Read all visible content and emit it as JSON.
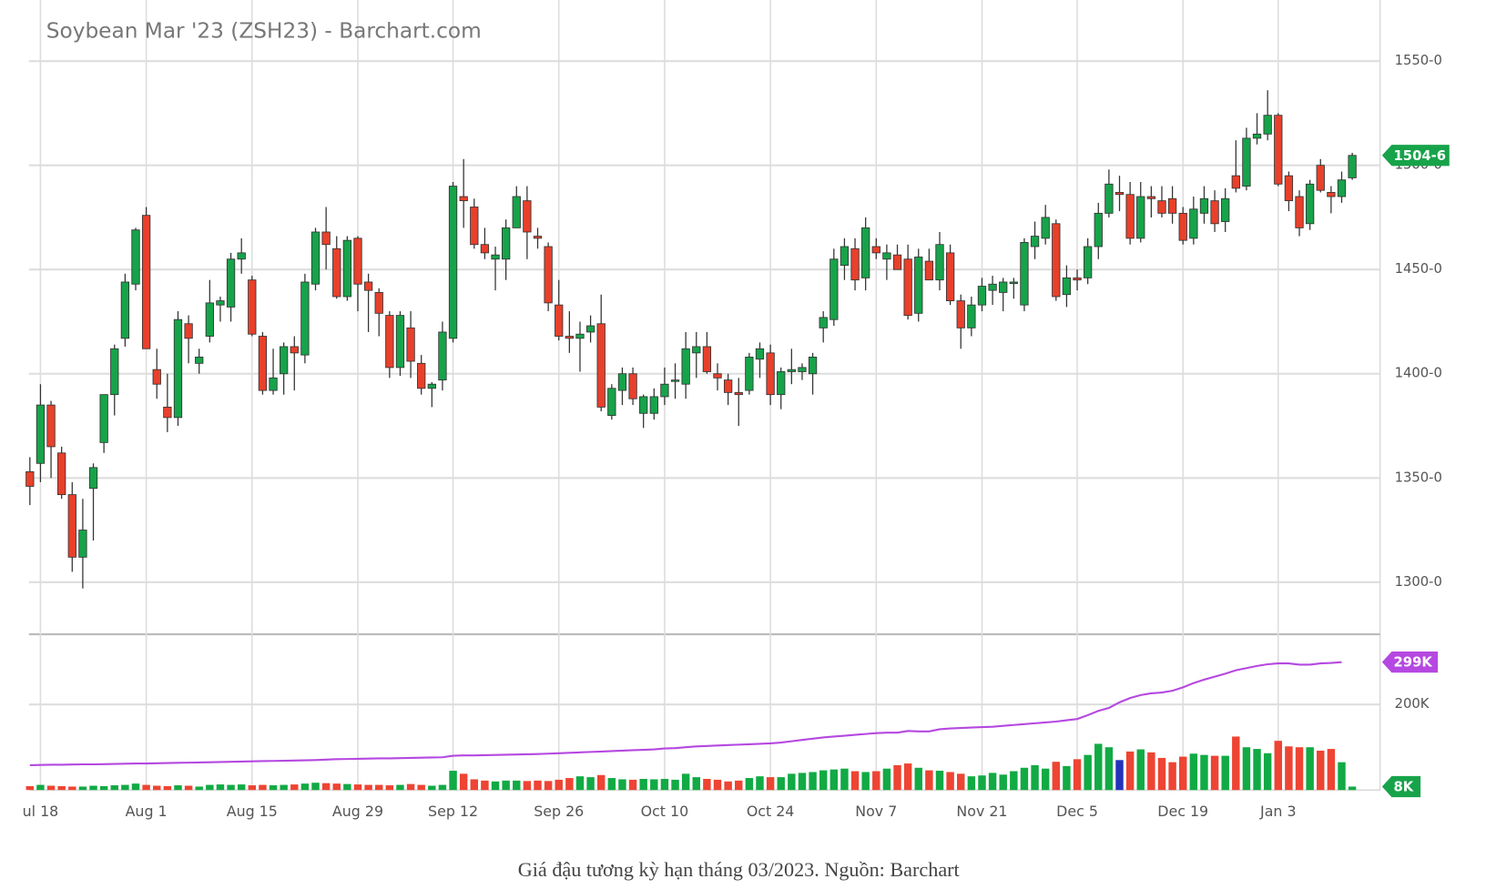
{
  "chart_data": {
    "type": "candlestick",
    "title": "Soybean Mar '23 (ZSH23) - Barchart.com",
    "categories": [
      null,
      "ul 18",
      null,
      null,
      null,
      null,
      null,
      null,
      null,
      null,
      null,
      "Aug 1",
      null,
      null,
      null,
      null,
      null,
      null,
      null,
      null,
      null,
      "Aug 15",
      null,
      null,
      null,
      null,
      null,
      null,
      null,
      null,
      null,
      "Aug 29",
      null,
      null,
      null,
      null,
      null,
      null,
      null,
      null,
      "Sep 12",
      null,
      null,
      null,
      null,
      null,
      null,
      null,
      null,
      null,
      "Sep 26",
      null,
      null,
      null,
      null,
      null,
      null,
      null,
      null,
      null,
      "Oct 10",
      null,
      null,
      null,
      null,
      null,
      null,
      null,
      null,
      null,
      "Oct 24",
      null,
      null,
      null,
      null,
      null,
      null,
      null,
      null,
      null,
      "Nov 7",
      null,
      null,
      null,
      null,
      null,
      null,
      null,
      null,
      null,
      "Nov 21",
      null,
      null,
      null,
      null,
      null,
      null,
      null,
      null,
      "Dec 5",
      null,
      null,
      null,
      null,
      null,
      null,
      null,
      null,
      null,
      "Dec 19",
      null,
      null,
      null,
      null,
      null,
      null,
      null,
      null,
      "Jan 3",
      null,
      null,
      null,
      null,
      null,
      null,
      null
    ],
    "open": [
      1353,
      1357,
      1385,
      1362,
      1342,
      1312,
      1345,
      1367,
      1390,
      1417,
      1443,
      1476,
      1402,
      1384,
      1379,
      1424,
      1405,
      1418,
      1433,
      1432,
      1455,
      1445,
      1418,
      1392,
      1400,
      1413,
      1409,
      1443,
      1468,
      1460,
      1437,
      1465,
      1444,
      1439,
      1428,
      1403,
      1422,
      1405,
      1393,
      1397,
      1417,
      1485,
      1480,
      1462,
      1455,
      1455,
      1470,
      1483,
      1466,
      1461,
      1433,
      1418,
      1417,
      1420,
      1424,
      1380,
      1392,
      1400,
      1381,
      1381,
      1389,
      1397,
      1395,
      1410,
      1413,
      1400,
      1397,
      1391,
      1392,
      1407,
      1410,
      1390,
      1401,
      1401,
      1400,
      1422,
      1426,
      1452,
      1460,
      1446,
      1461,
      1455,
      1457,
      1455,
      1429,
      1454,
      1445,
      1458,
      1435,
      1422,
      1433,
      1440,
      1439,
      1444,
      1433,
      1461,
      1465,
      1472,
      1438,
      1446,
      1446,
      1461,
      1477,
      1487,
      1486,
      1465,
      1485,
      1483,
      1484,
      1477,
      1465,
      1477,
      1483,
      1473,
      1495,
      1490,
      1513,
      1515,
      1524,
      1495,
      1485,
      1472,
      1500,
      1487,
      1485,
      1494
    ],
    "high": [
      1360,
      1395,
      1387,
      1365,
      1348,
      1340,
      1357,
      1390,
      1414,
      1448,
      1470,
      1480,
      1412,
      1400,
      1430,
      1428,
      1412,
      1445,
      1437,
      1458,
      1465,
      1447,
      1420,
      1412,
      1415,
      1418,
      1448,
      1470,
      1480,
      1466,
      1466,
      1466,
      1448,
      1441,
      1430,
      1430,
      1430,
      1409,
      1396,
      1425,
      1492,
      1503,
      1484,
      1470,
      1461,
      1474,
      1490,
      1490,
      1470,
      1463,
      1445,
      1430,
      1425,
      1428,
      1438,
      1395,
      1403,
      1403,
      1390,
      1393,
      1403,
      1405,
      1420,
      1420,
      1420,
      1405,
      1400,
      1398,
      1410,
      1415,
      1414,
      1403,
      1412,
      1405,
      1410,
      1430,
      1460,
      1465,
      1465,
      1475,
      1465,
      1462,
      1462,
      1462,
      1460,
      1460,
      1468,
      1462,
      1438,
      1437,
      1446,
      1447,
      1446,
      1446,
      1465,
      1473,
      1481,
      1474,
      1452,
      1450,
      1465,
      1482,
      1498,
      1495,
      1492,
      1492,
      1490,
      1490,
      1490,
      1480,
      1485,
      1490,
      1488,
      1489,
      1512,
      1518,
      1525,
      1536,
      1525,
      1497,
      1488,
      1493,
      1503,
      1490,
      1497,
      1506
    ],
    "low": [
      1337,
      1348,
      1350,
      1340,
      1305,
      1297,
      1320,
      1362,
      1380,
      1413,
      1440,
      1412,
      1388,
      1372,
      1375,
      1405,
      1400,
      1415,
      1425,
      1425,
      1448,
      1418,
      1390,
      1390,
      1390,
      1392,
      1405,
      1440,
      1450,
      1436,
      1435,
      1430,
      1420,
      1418,
      1398,
      1399,
      1398,
      1390,
      1384,
      1392,
      1415,
      1470,
      1460,
      1455,
      1440,
      1445,
      1470,
      1455,
      1460,
      1430,
      1416,
      1410,
      1401,
      1415,
      1382,
      1378,
      1385,
      1385,
      1374,
      1378,
      1385,
      1388,
      1388,
      1398,
      1400,
      1392,
      1385,
      1375,
      1390,
      1398,
      1385,
      1383,
      1395,
      1397,
      1390,
      1415,
      1423,
      1445,
      1440,
      1440,
      1455,
      1445,
      1450,
      1426,
      1425,
      1445,
      1440,
      1433,
      1412,
      1418,
      1430,
      1433,
      1430,
      1436,
      1430,
      1455,
      1462,
      1435,
      1432,
      1440,
      1443,
      1455,
      1475,
      1478,
      1462,
      1463,
      1475,
      1475,
      1472,
      1462,
      1462,
      1472,
      1468,
      1468,
      1487,
      1488,
      1510,
      1512,
      1490,
      1478,
      1466,
      1469,
      1487,
      1477,
      1482,
      1493
    ],
    "close": [
      1346,
      1385,
      1365,
      1342,
      1312,
      1325,
      1355,
      1390,
      1412,
      1444,
      1469,
      1412,
      1395,
      1379,
      1426,
      1417,
      1408,
      1434,
      1435,
      1455,
      1458,
      1419,
      1392,
      1398,
      1413,
      1410,
      1444,
      1468,
      1462,
      1437,
      1464,
      1443,
      1440,
      1429,
      1403,
      1428,
      1406,
      1393,
      1395,
      1420,
      1490,
      1483,
      1462,
      1458,
      1457,
      1470,
      1485,
      1468,
      1465,
      1434,
      1418,
      1417,
      1419,
      1423,
      1384,
      1393,
      1400,
      1388,
      1389,
      1389,
      1395,
      1397,
      1412,
      1413,
      1401,
      1398,
      1391,
      1390,
      1408,
      1412,
      1390,
      1401,
      1402,
      1403,
      1408,
      1427,
      1455,
      1461,
      1445,
      1470,
      1458,
      1458,
      1450,
      1428,
      1456,
      1445,
      1462,
      1435,
      1422,
      1433,
      1442,
      1443,
      1444,
      1444,
      1463,
      1466,
      1475,
      1437,
      1446,
      1445,
      1461,
      1477,
      1491,
      1486,
      1465,
      1485,
      1484,
      1477,
      1477,
      1464,
      1479,
      1484,
      1472,
      1484,
      1489,
      1513,
      1515,
      1524,
      1491,
      1483,
      1470,
      1491,
      1488,
      1485,
      1493,
      1504.75
    ],
    "up_color": "#17a34a",
    "down_color": "#e8402b",
    "ylim": [
      1275,
      1577
    ],
    "yticks": [
      {
        "value": 1300,
        "label": "1300-0"
      },
      {
        "value": 1350,
        "label": "1350-0"
      },
      {
        "value": 1400,
        "label": "1400-0"
      },
      {
        "value": 1450,
        "label": "1450-0"
      },
      {
        "value": 1500,
        "label": "1500-0"
      },
      {
        "value": 1550,
        "label": "1550-0"
      }
    ],
    "grid": true,
    "volume": {
      "values": [
        9000,
        12000,
        10000,
        9000,
        8000,
        8000,
        10000,
        9000,
        11000,
        12000,
        15000,
        12000,
        10000,
        9000,
        11000,
        10000,
        8000,
        12000,
        13000,
        12000,
        13000,
        11000,
        12000,
        11000,
        12000,
        13000,
        15000,
        17000,
        16000,
        15000,
        14000,
        13000,
        12000,
        12000,
        11000,
        12000,
        14000,
        12000,
        10000,
        12000,
        45000,
        38000,
        25000,
        22000,
        20000,
        22000,
        22000,
        21000,
        22000,
        21000,
        24000,
        28000,
        32000,
        30000,
        35000,
        28000,
        25000,
        24000,
        26000,
        25000,
        26000,
        24000,
        38000,
        30000,
        26000,
        24000,
        20000,
        22000,
        28000,
        32000,
        30000,
        30000,
        38000,
        40000,
        42000,
        46000,
        48000,
        50000,
        44000,
        42000,
        44000,
        50000,
        58000,
        62000,
        52000,
        46000,
        45000,
        42000,
        38000,
        32000,
        34000,
        40000,
        36000,
        44000,
        52000,
        58000,
        50000,
        66000,
        56000,
        72000,
        82000,
        108000,
        100000,
        70000,
        90000,
        95000,
        88000,
        75000,
        65000,
        78000,
        85000,
        82000,
        80000,
        80000,
        125000,
        100000,
        96000,
        86000,
        115000,
        102000,
        100000,
        100000,
        92000,
        96000,
        65000,
        8000
      ],
      "colors": [
        "#e43",
        "#1a4",
        "#e43",
        "#e43",
        "#e43",
        "#1a4",
        "#1a4",
        "#1a4",
        "#1a4",
        "#1a4",
        "#1a4",
        "#e43",
        "#e43",
        "#e43",
        "#1a4",
        "#e43",
        "#1a4",
        "#1a4",
        "#1a4",
        "#1a4",
        "#1a4",
        "#e43",
        "#e43",
        "#1a4",
        "#1a4",
        "#e43",
        "#1a4",
        "#1a4",
        "#e43",
        "#e43",
        "#1a4",
        "#e43",
        "#e43",
        "#e43",
        "#e43",
        "#1a4",
        "#e43",
        "#e43",
        "#1a4",
        "#1a4",
        "#1a4",
        "#e43",
        "#e43",
        "#e43",
        "#1a4",
        "#1a4",
        "#1a4",
        "#e43",
        "#e43",
        "#e43",
        "#e43",
        "#e43",
        "#1a4",
        "#1a4",
        "#e43",
        "#1a4",
        "#1a4",
        "#e43",
        "#1a4",
        "#1a4",
        "#1a4",
        "#1a4",
        "#1a4",
        "#1a4",
        "#e43",
        "#e43",
        "#e43",
        "#e43",
        "#1a4",
        "#1a4",
        "#e43",
        "#1a4",
        "#1a4",
        "#1a4",
        "#1a4",
        "#1a4",
        "#1a4",
        "#1a4",
        "#e43",
        "#1a4",
        "#e43",
        "#1a4",
        "#e43",
        "#e43",
        "#1a4",
        "#e43",
        "#1a4",
        "#e43",
        "#e43",
        "#1a4",
        "#1a4",
        "#1a4",
        "#1a4",
        "#1a4",
        "#1a4",
        "#1a4",
        "#1a4",
        "#e43",
        "#1a4",
        "#e43",
        "#1a4",
        "#1a4",
        "#1a4",
        "#23b",
        "#e43",
        "#1a4",
        "#e43",
        "#e43",
        "#e43",
        "#e43",
        "#1a4",
        "#1a4",
        "#e43",
        "#1a4",
        "#e43",
        "#1a4",
        "#1a4",
        "#1a4",
        "#e43",
        "#e43",
        "#e43",
        "#1a4",
        "#e43",
        "#e43",
        "#1a4",
        "#1a4"
      ]
    },
    "open_interest": {
      "color": "#b548e0",
      "values": [
        58000,
        58500,
        59000,
        59000,
        59500,
        60000,
        60000,
        60500,
        61000,
        61500,
        62000,
        62000,
        62500,
        63000,
        63500,
        64000,
        64500,
        65000,
        65500,
        66000,
        66500,
        67000,
        67500,
        68000,
        68500,
        69000,
        69500,
        70000,
        71000,
        72000,
        72500,
        73000,
        73500,
        74000,
        74000,
        74500,
        75000,
        75500,
        76000,
        76500,
        80000,
        81000,
        81000,
        81500,
        82000,
        82500,
        83000,
        83500,
        84000,
        85000,
        86000,
        87000,
        88000,
        89000,
        90000,
        91000,
        92000,
        93000,
        94000,
        95000,
        97000,
        98000,
        100000,
        102000,
        103000,
        104000,
        105000,
        106000,
        107000,
        108000,
        109000,
        111000,
        114000,
        117000,
        120000,
        123000,
        125000,
        127000,
        129000,
        131000,
        133000,
        134000,
        134000,
        138000,
        137000,
        137000,
        142000,
        144000,
        145000,
        146000,
        147000,
        148000,
        150000,
        152000,
        154000,
        156000,
        158000,
        160000,
        163000,
        166000,
        175000,
        185000,
        192000,
        205000,
        215000,
        222000,
        226000,
        228000,
        232000,
        240000,
        250000,
        258000,
        265000,
        272000,
        280000,
        285000,
        290000,
        294000,
        296000,
        296000,
        293000,
        293000,
        296000,
        297000,
        299000,
        null
      ]
    },
    "y2lim": [
      0,
      364000
    ],
    "y2ticks": [
      {
        "value": 200000,
        "label": "200K"
      }
    ],
    "price_marker": {
      "value": 1504.75,
      "label": "1504-6"
    },
    "volume_marker": {
      "value": 8000,
      "label": "8K"
    },
    "open_interest_marker": {
      "value": 299000,
      "label": "299K"
    }
  },
  "caption": "Giá đậu tương kỳ hạn tháng 03/2023. Nguồn: Barchart"
}
